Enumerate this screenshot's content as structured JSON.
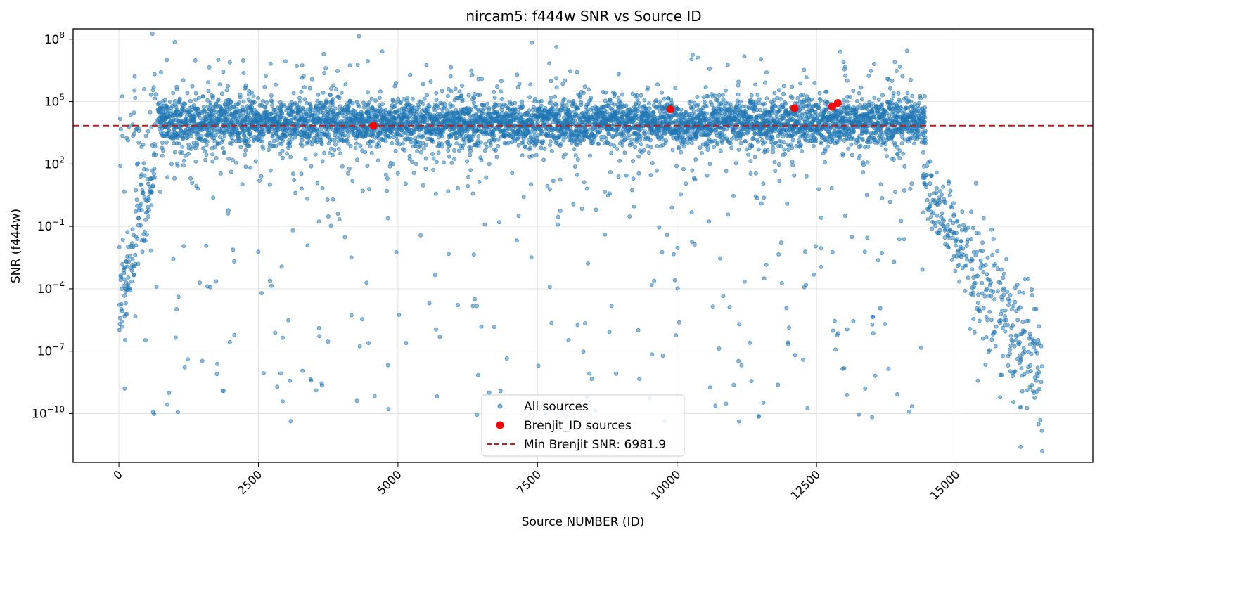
{
  "chart_data": {
    "type": "scatter",
    "title": "nircam5: f444w SNR vs Source ID",
    "xlabel": "Source NUMBER (ID)",
    "ylabel": "SNR (f444w)",
    "xlim": [
      -820,
      17450
    ],
    "ylog": true,
    "ylim_exp": [
      -12.35,
      8.5
    ],
    "grid": true,
    "legend_position": "lower-center",
    "x_ticks": [
      0,
      2500,
      5000,
      7500,
      10000,
      12500,
      15000
    ],
    "x_tick_labels": [
      "0",
      "2500",
      "5000",
      "7500",
      "10000",
      "12500",
      "15000"
    ],
    "y_tick_exponents": [
      8,
      5,
      2,
      -1,
      -4,
      -7,
      -10
    ],
    "y_tick_base": "10",
    "y_tick_exp_labels": [
      "8",
      "5",
      "2",
      "−1",
      "−4",
      "−7",
      "−10"
    ],
    "series": [
      {
        "name": "All sources",
        "color": "#1f77b4",
        "marker": "circle-small",
        "bands": [
          {
            "x_range": [
              700,
              14450
            ],
            "log_center": 4.0,
            "log_spread": 0.55,
            "density": 1.0
          },
          {
            "x_range": [
              0,
              14450
            ],
            "log_center": 4.0,
            "log_spread": 1.5,
            "density": 0.18
          },
          {
            "x_range": [
              0,
              14400
            ],
            "log_range": [
              -10.5,
              2.5
            ],
            "density": 0.06
          },
          {
            "x_range": [
              0,
              650
            ],
            "log_center_from": -5.0,
            "log_center_to": 2.0,
            "log_spread": 1.0,
            "density": 0.6
          },
          {
            "x_range": [
              14400,
              15200
            ],
            "log_center_from": 1.5,
            "log_center_to": -2.5,
            "log_spread": 0.9,
            "density": 0.5
          },
          {
            "x_range": [
              15200,
              16550
            ],
            "log_center_from": -3.0,
            "log_center_to": -8.0,
            "log_spread": 1.6,
            "density": 0.5
          }
        ],
        "approx_count": 16550
      },
      {
        "name": "Brenjit_ID sources",
        "color": "#ff0000",
        "marker": "circle",
        "points": [
          {
            "x": 4560,
            "y_exp": 3.84
          },
          {
            "x": 9880,
            "y_exp": 4.63
          },
          {
            "x": 12100,
            "y_exp": 4.68
          },
          {
            "x": 12780,
            "y_exp": 4.76
          },
          {
            "x": 12880,
            "y_exp": 4.93
          }
        ]
      }
    ],
    "threshold_line": {
      "name": "Min Brenjit SNR: 6981.9",
      "value": 6981.9,
      "color": "#b22222",
      "style": "dashed"
    }
  }
}
